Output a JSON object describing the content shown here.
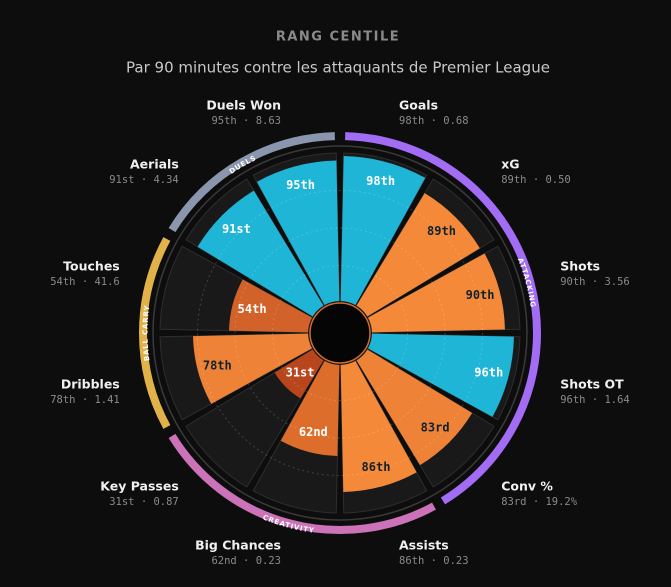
{
  "chart_data": {
    "type": "polar-bar",
    "title": "RANG CENTILE",
    "subtitle": "Par 90 minutes contre les attaquants de Premier League",
    "rlim": [
      0,
      100
    ],
    "groups": [
      {
        "name": "ATTACKING",
        "color": "#a26cf4",
        "categories": [
          "Goals",
          "xG",
          "Shots",
          "Shots OT",
          "Conv %"
        ],
        "values": [
          98,
          89,
          90,
          96,
          83
        ],
        "value_labels": [
          "98th",
          "89th",
          "90th",
          "96th",
          "83rd"
        ],
        "stat_labels": [
          "98th · 0.68",
          "89th · 0.50",
          "90th · 3.56",
          "96th · 1.64",
          "83rd · 19.2%"
        ],
        "colors": [
          "#1fb5d6",
          "#f5893a",
          "#f5893a",
          "#1fb5d6",
          "#ee8236"
        ]
      },
      {
        "name": "CREATIVITY",
        "color": "#cc72b8",
        "categories": [
          "Assists",
          "Big Chances",
          "Key Passes"
        ],
        "values": [
          86,
          62,
          31
        ],
        "value_labels": [
          "86th",
          "62nd",
          "31st"
        ],
        "stat_labels": [
          "86th · 0.23",
          "62nd · 0.23",
          "31st · 0.87"
        ],
        "colors": [
          "#f5893a",
          "#dd6d2a",
          "#b9451c"
        ]
      },
      {
        "name": "BALL CARRY",
        "color": "#e2b24a",
        "categories": [
          "Dribbles",
          "Touches"
        ],
        "values": [
          78,
          54
        ],
        "value_labels": [
          "78th",
          "54th"
        ],
        "stat_labels": [
          "78th · 1.41",
          "54th · 41.6"
        ],
        "colors": [
          "#ee8236",
          "#d2622a"
        ]
      },
      {
        "name": "DUELS",
        "color": "#8a96ad",
        "categories": [
          "Aerials",
          "Duels Won"
        ],
        "values": [
          91,
          95
        ],
        "value_labels": [
          "91st",
          "95th"
        ],
        "stat_labels": [
          "91st · 4.34",
          "95th · 8.63"
        ],
        "colors": [
          "#1fb5d6",
          "#1fb5d6"
        ]
      }
    ]
  }
}
